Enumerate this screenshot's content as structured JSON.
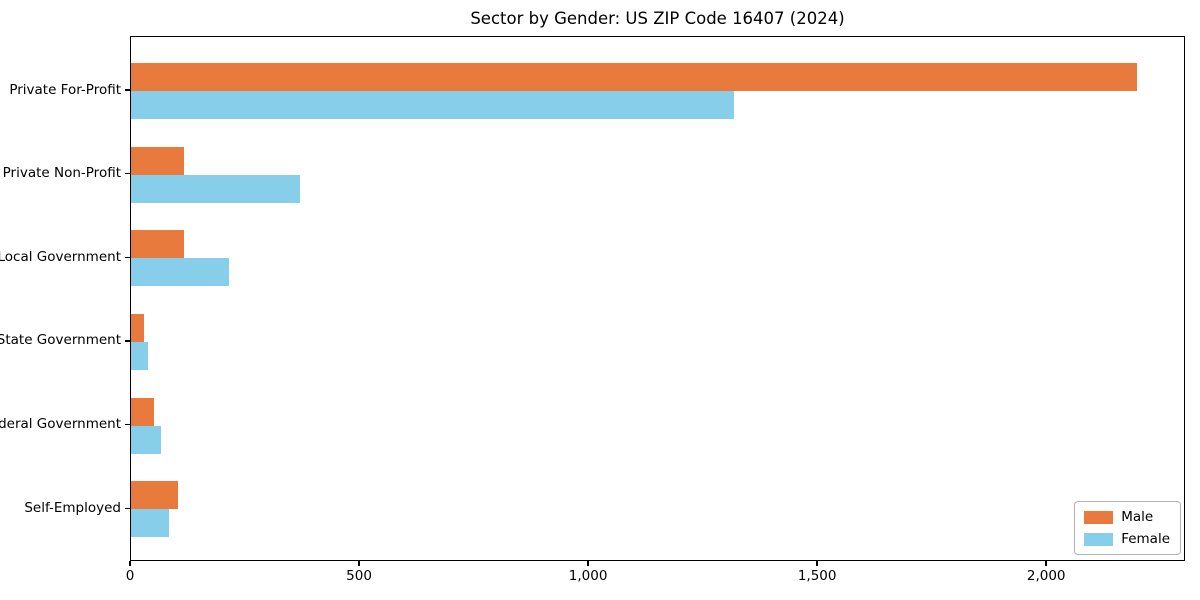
{
  "chart_data": {
    "type": "bar",
    "orientation": "horizontal",
    "title": "Sector by Gender: US ZIP Code 16407 (2024)",
    "categories": [
      "Private For-Profit",
      "Private Non-Profit",
      "Local Government",
      "State Government",
      "Federal Government",
      "Self-Employed"
    ],
    "series": [
      {
        "name": "Male",
        "color": "#E87A3E",
        "values": [
          2196,
          115,
          116,
          29,
          51,
          102
        ]
      },
      {
        "name": "Female",
        "color": "#87CEEB",
        "values": [
          1316,
          370,
          213,
          38,
          66,
          84
        ]
      }
    ],
    "xlabel": "",
    "ylabel": "",
    "xlim": [
      0,
      2303
    ],
    "x_ticks": [
      {
        "value": 0,
        "label": "0"
      },
      {
        "value": 500,
        "label": "500"
      },
      {
        "value": 1000,
        "label": "1,000"
      },
      {
        "value": 1500,
        "label": "1,500"
      },
      {
        "value": 2000,
        "label": "2,000"
      }
    ],
    "grid": false,
    "legend_position": "lower right",
    "background_color": "#ffffff",
    "text_color": "#000000"
  }
}
